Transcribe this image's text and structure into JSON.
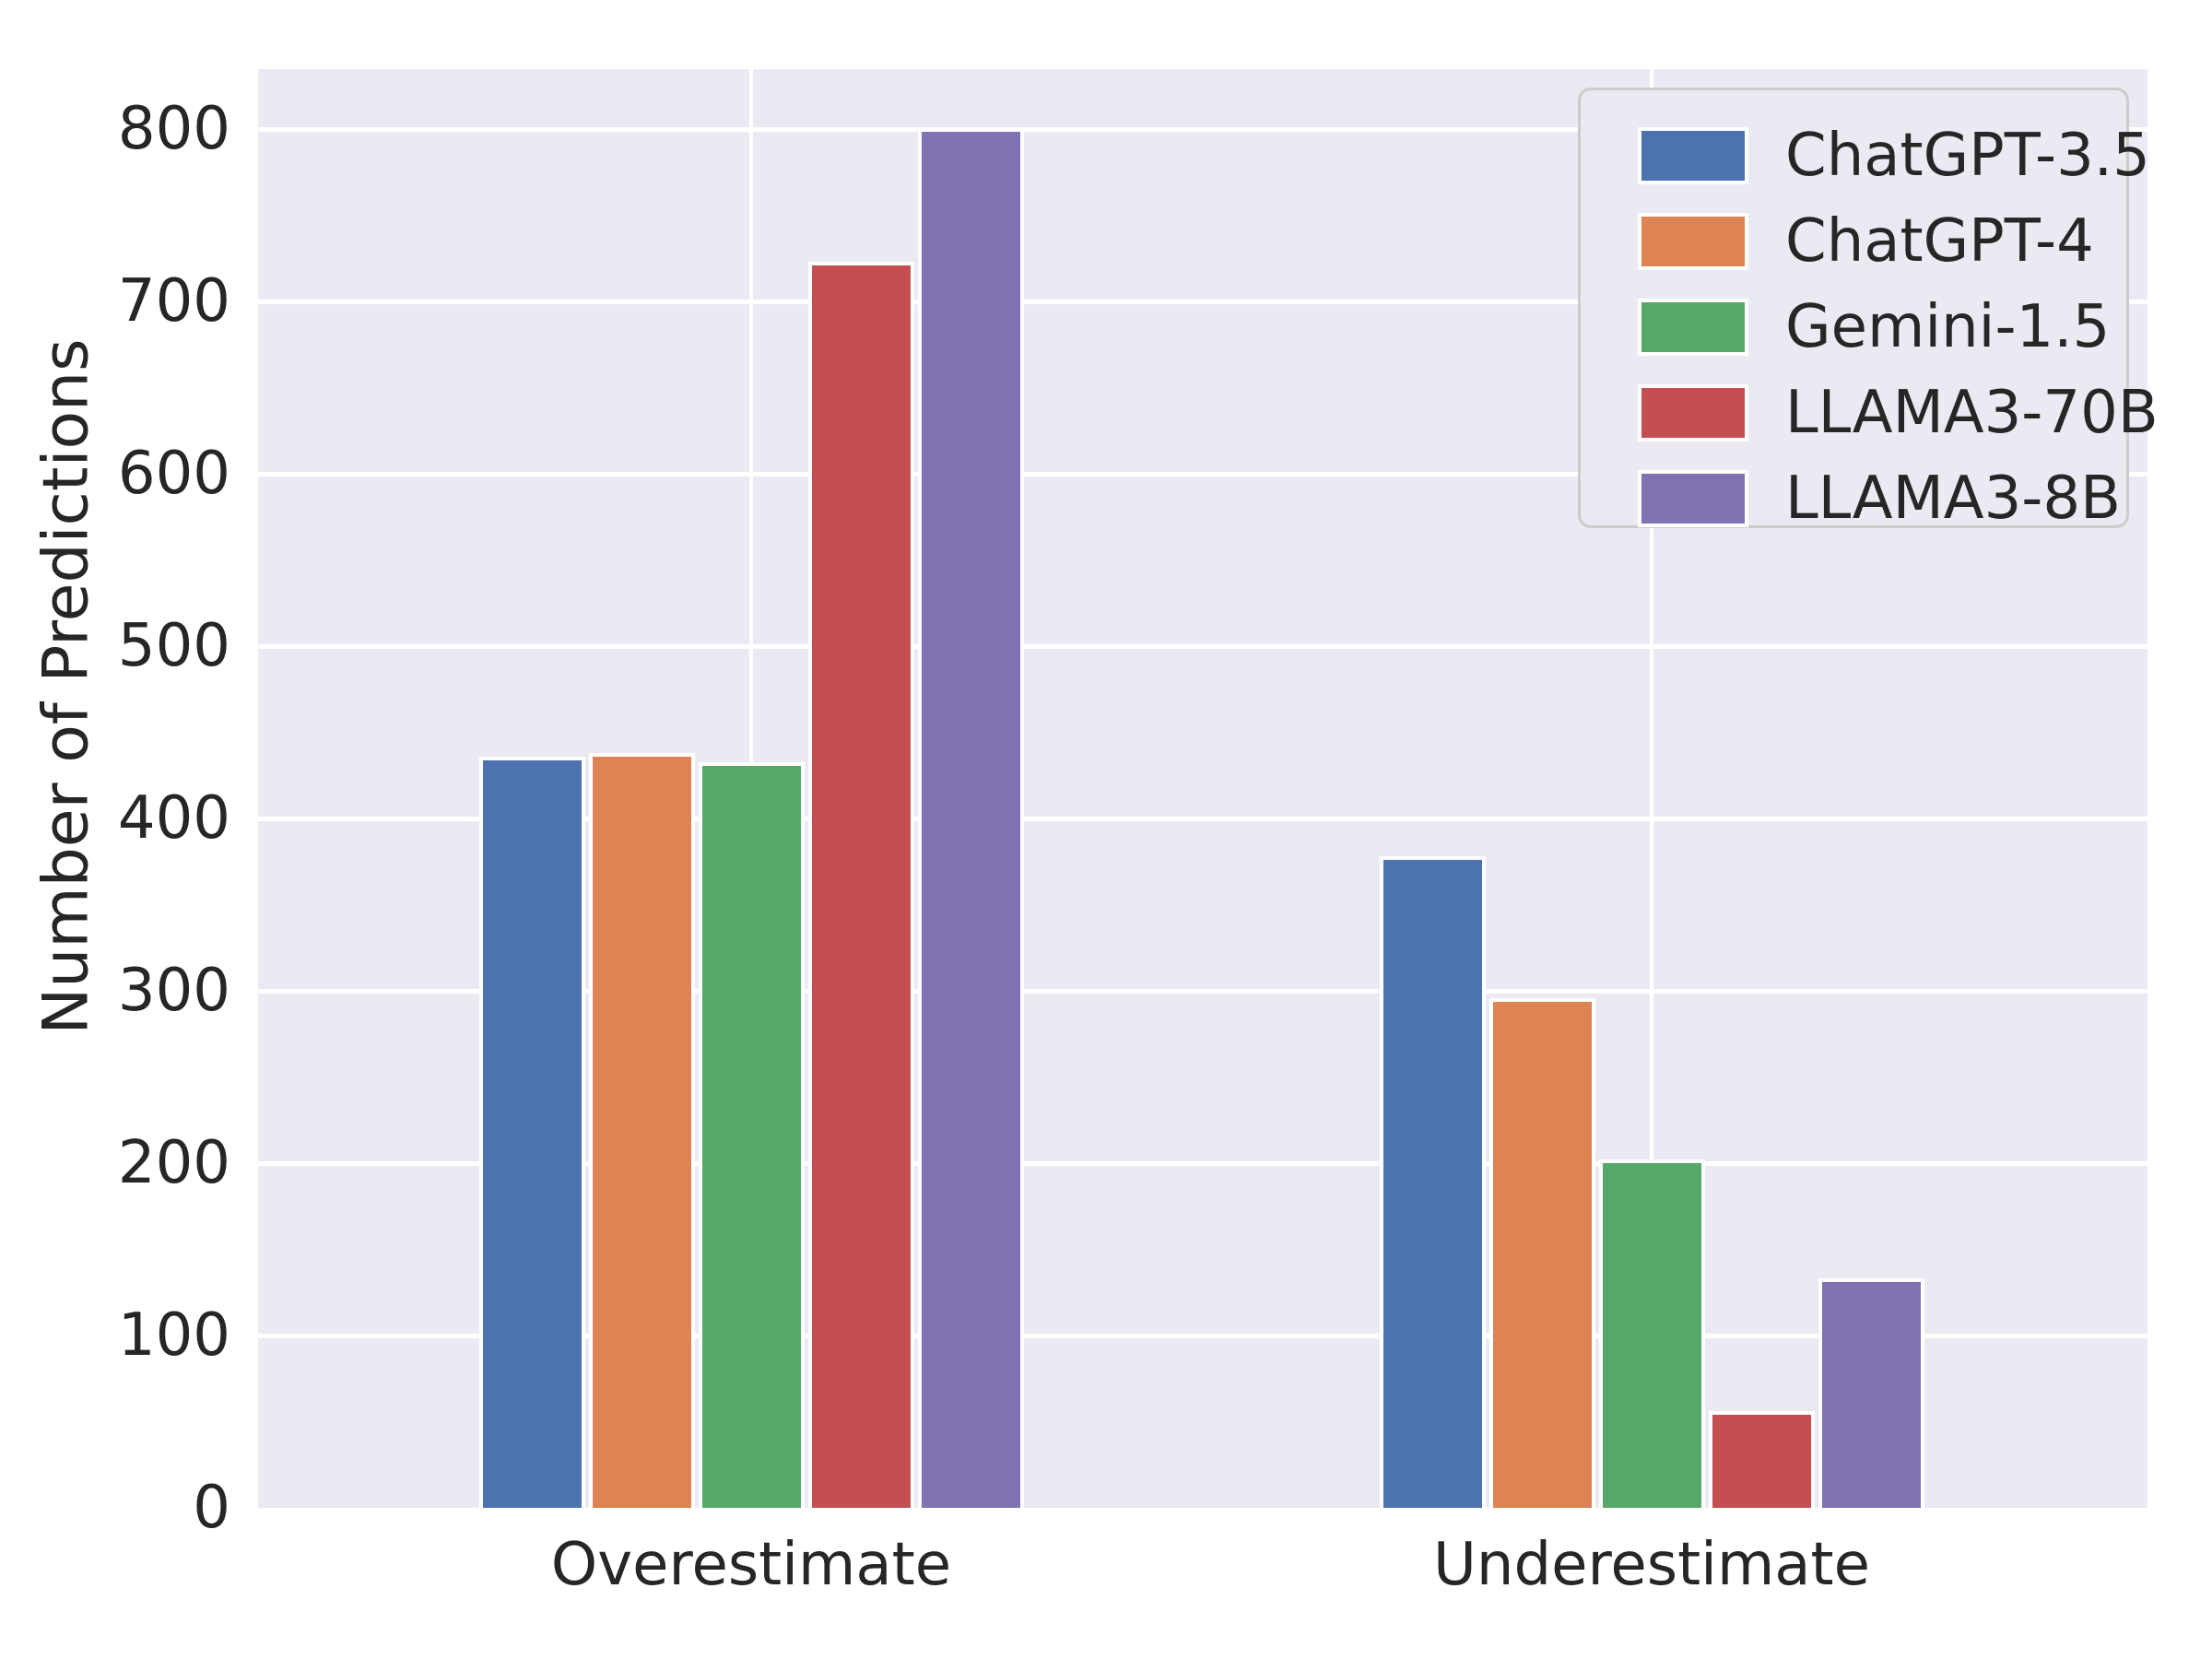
{
  "chart_data": {
    "type": "bar",
    "title": "",
    "categories": [
      "Overestimate",
      "Underestimate"
    ],
    "series": [
      {
        "name": "ChatGPT-3.5",
        "color": "#4C72B0",
        "values": [
          436,
          378
        ]
      },
      {
        "name": "ChatGPT-4",
        "color": "#DD8452",
        "values": [
          438,
          296
        ]
      },
      {
        "name": "Gemini-1.5",
        "color": "#55A868",
        "values": [
          433,
          202
        ]
      },
      {
        "name": "LLAMA3-70B",
        "color": "#C44E52",
        "values": [
          723,
          56
        ]
      },
      {
        "name": "LLAMA3-8B",
        "color": "#8172B3",
        "values": [
          801,
          133
        ]
      }
    ],
    "xlabel": "",
    "ylabel": "Number of Predictions",
    "yticks": [
      0,
      100,
      200,
      300,
      400,
      500,
      600,
      700,
      800
    ],
    "ylim": [
      0,
      835
    ],
    "grid": true,
    "legend_position": "upper right",
    "style": {
      "figure_background": "#FFFFFF",
      "plot_background": "#EAEAF2",
      "grid_color": "#FFFFFF",
      "text_color": "#262626",
      "bar_edge_color": "#FFFFFF",
      "legend_border_color": "#CCCCCC"
    }
  }
}
